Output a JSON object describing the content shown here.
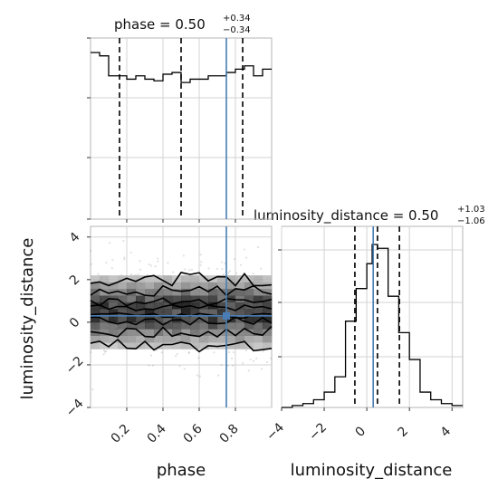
{
  "chart_data": [
    {
      "type": "histogram",
      "panel": "phase-marginal",
      "title": "phase = 0.50",
      "title_sup": "+0.34",
      "title_sub": "−0.34",
      "xlim": [
        0.0,
        1.0
      ],
      "bins": [
        0.0,
        0.05,
        0.1,
        0.15,
        0.2,
        0.25,
        0.3,
        0.35,
        0.4,
        0.45,
        0.5,
        0.55,
        0.6,
        0.65,
        0.7,
        0.75,
        0.8,
        0.85,
        0.9,
        0.95,
        1.0
      ],
      "counts": [
        1.0,
        0.98,
        0.86,
        0.86,
        0.84,
        0.86,
        0.84,
        0.83,
        0.87,
        0.88,
        0.82,
        0.84,
        0.84,
        0.86,
        0.86,
        0.88,
        0.9,
        0.92,
        0.86,
        0.9
      ],
      "quantiles": [
        0.16,
        0.5,
        0.84
      ],
      "truth": 0.75
    },
    {
      "type": "scatter",
      "panel": "joint-2d",
      "xlabel": "phase",
      "ylabel": "luminosity_distance",
      "xlim": [
        0.0,
        1.0
      ],
      "ylim": [
        -4,
        4.5
      ],
      "xticks": [
        "0.2",
        "0.4",
        "0.6",
        "0.8"
      ],
      "yticks": [
        "−4",
        "−2",
        "0",
        "2",
        "4"
      ],
      "truth": {
        "x": 0.75,
        "y": 0.3
      }
    },
    {
      "type": "histogram",
      "panel": "luminosity-distance-marginal",
      "title": "luminosity_distance = 0.50",
      "title_sup": "+1.03",
      "title_sub": "−1.06",
      "xlabel": "luminosity_distance",
      "xlim": [
        -4,
        4.5
      ],
      "xticks": [
        "−4",
        "−2",
        "0",
        "2",
        "4"
      ],
      "bin_edges": [
        -4.0,
        -3.5,
        -3.0,
        -2.5,
        -2.0,
        -1.5,
        -1.0,
        -0.5,
        0.0,
        0.25,
        0.5,
        1.0,
        1.5,
        2.0,
        2.5,
        3.0,
        3.5,
        4.0,
        4.5
      ],
      "counts": [
        0.0,
        0.01,
        0.02,
        0.04,
        0.08,
        0.16,
        0.45,
        0.62,
        0.75,
        0.85,
        0.83,
        0.58,
        0.39,
        0.25,
        0.08,
        0.04,
        0.02,
        0.01
      ],
      "quantiles": [
        -0.56,
        0.5,
        1.53
      ],
      "truth": 0.3
    }
  ]
}
